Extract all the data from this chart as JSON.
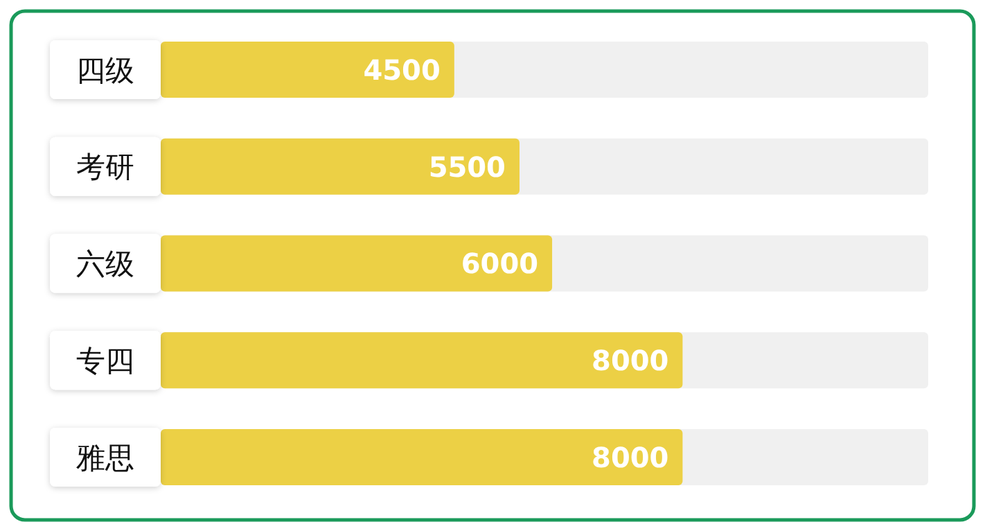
{
  "chart_data": {
    "type": "bar",
    "orientation": "horizontal",
    "categories": [
      "四级",
      "考研",
      "六级",
      "专四",
      "雅思"
    ],
    "values": [
      4500,
      5500,
      6000,
      8000,
      8000
    ],
    "color": "#ecd045",
    "data_labels": true
  }
}
